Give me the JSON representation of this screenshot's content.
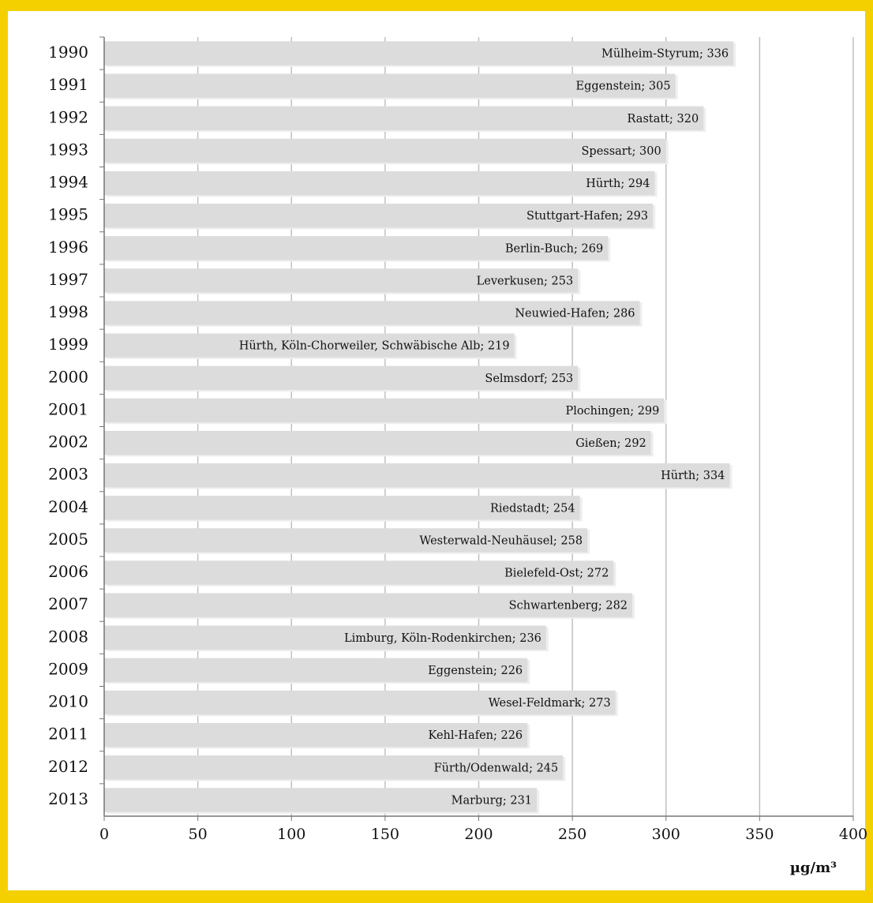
{
  "chart_data": {
    "type": "bar",
    "orientation": "horizontal",
    "x_label": "µg/m³",
    "categories": [
      "1990",
      "1991",
      "1992",
      "1993",
      "1994",
      "1995",
      "1996",
      "1997",
      "1998",
      "1999",
      "2000",
      "2001",
      "2002",
      "2003",
      "2004",
      "2005",
      "2006",
      "2007",
      "2008",
      "2009",
      "2010",
      "2011",
      "2012",
      "2013"
    ],
    "values": [
      336,
      305,
      320,
      300,
      294,
      293,
      269,
      253,
      286,
      219,
      253,
      299,
      292,
      334,
      254,
      258,
      272,
      282,
      236,
      226,
      273,
      226,
      245,
      231
    ],
    "value_labels": [
      "Mülheim-Styrum; 336",
      "Eggenstein; 305",
      "Rastatt; 320",
      "Spessart; 300",
      "Hürth; 294",
      "Stuttgart-Hafen; 293",
      "Berlin-Buch; 269",
      "Leverkusen; 253",
      "Neuwied-Hafen; 286",
      "Hürth, Köln-Chorweiler, Schwäbische Alb; 219",
      "Selmsdorf; 253",
      "Plochingen; 299",
      "Gießen; 292",
      "Hürth; 334",
      "Riedstadt; 254",
      "Westerwald-Neuhäusel; 258",
      "Bielefeld-Ost; 272",
      "Schwartenberg; 282",
      "Limburg, Köln-Rodenkirchen; 236",
      "Eggenstein; 226",
      "Wesel-Feldmark; 273",
      "Kehl-Hafen; 226",
      "Fürth/Odenwald; 245",
      "Marburg; 231"
    ],
    "color": "#dcdcdc",
    "xlim": [
      0,
      400
    ],
    "xticks": [
      0,
      50,
      100,
      150,
      200,
      250,
      300,
      350,
      400
    ],
    "grid": true
  }
}
